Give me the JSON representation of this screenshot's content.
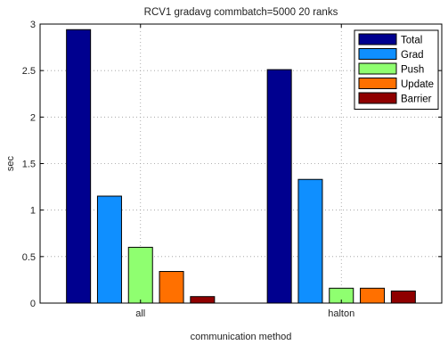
{
  "chart_data": {
    "type": "bar",
    "title": "RCV1 gradavg commbatch=5000 20 ranks",
    "xlabel": "communication method",
    "ylabel": "sec",
    "categories": [
      "all",
      "halton"
    ],
    "ylim": [
      0,
      3
    ],
    "yticks": [
      "0",
      "0.5",
      "1",
      "1.5",
      "2",
      "2.5",
      "3"
    ],
    "grid": true,
    "legend_position": "top-right",
    "series": [
      {
        "name": "Total",
        "color": "#00008f",
        "values": [
          2.94,
          2.51
        ]
      },
      {
        "name": "Grad",
        "color": "#0f8fff",
        "values": [
          1.15,
          1.33
        ]
      },
      {
        "name": "Push",
        "color": "#8fff70",
        "values": [
          0.6,
          0.16
        ]
      },
      {
        "name": "Update",
        "color": "#ff7000",
        "values": [
          0.34,
          0.16
        ]
      },
      {
        "name": "Barrier",
        "color": "#8f0000",
        "values": [
          0.07,
          0.13
        ]
      }
    ]
  }
}
